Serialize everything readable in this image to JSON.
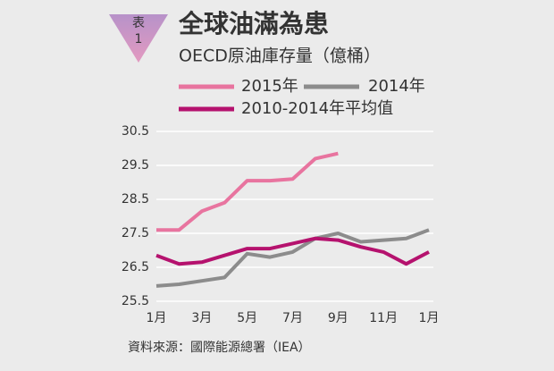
{
  "badge": "表\n1",
  "chart_data": {
    "type": "line",
    "title": "全球油滿為患",
    "subtitle": "OECD原油庫存量（億桶）",
    "source": "資料來源：國際能源總署（IEA）",
    "categories": [
      "1月",
      null,
      "3月",
      null,
      "5月",
      null,
      "7月",
      null,
      "9月",
      null,
      "11月",
      null,
      "1月"
    ],
    "series": [
      {
        "name": "2015年",
        "color": "#e8749f",
        "values": [
          27.6,
          27.6,
          28.15,
          28.4,
          29.05,
          29.05,
          29.1,
          29.7,
          29.85,
          null,
          null,
          null,
          null
        ]
      },
      {
        "name": "2014年",
        "color": "#8c8c8c",
        "values": [
          25.95,
          26.0,
          26.1,
          26.2,
          26.9,
          26.8,
          26.95,
          27.35,
          27.5,
          27.25,
          27.3,
          27.35,
          27.6
        ]
      },
      {
        "name": "2010-2014年平均值",
        "color": "#b5126e",
        "values": [
          26.85,
          26.6,
          26.65,
          26.85,
          27.05,
          27.05,
          27.2,
          27.35,
          27.3,
          27.1,
          26.95,
          26.6,
          26.95
        ]
      }
    ],
    "ylim": [
      25.5,
      30.5
    ],
    "yticks": [
      25.5,
      26.5,
      27.5,
      28.5,
      29.5,
      30.5
    ],
    "grid": true
  }
}
